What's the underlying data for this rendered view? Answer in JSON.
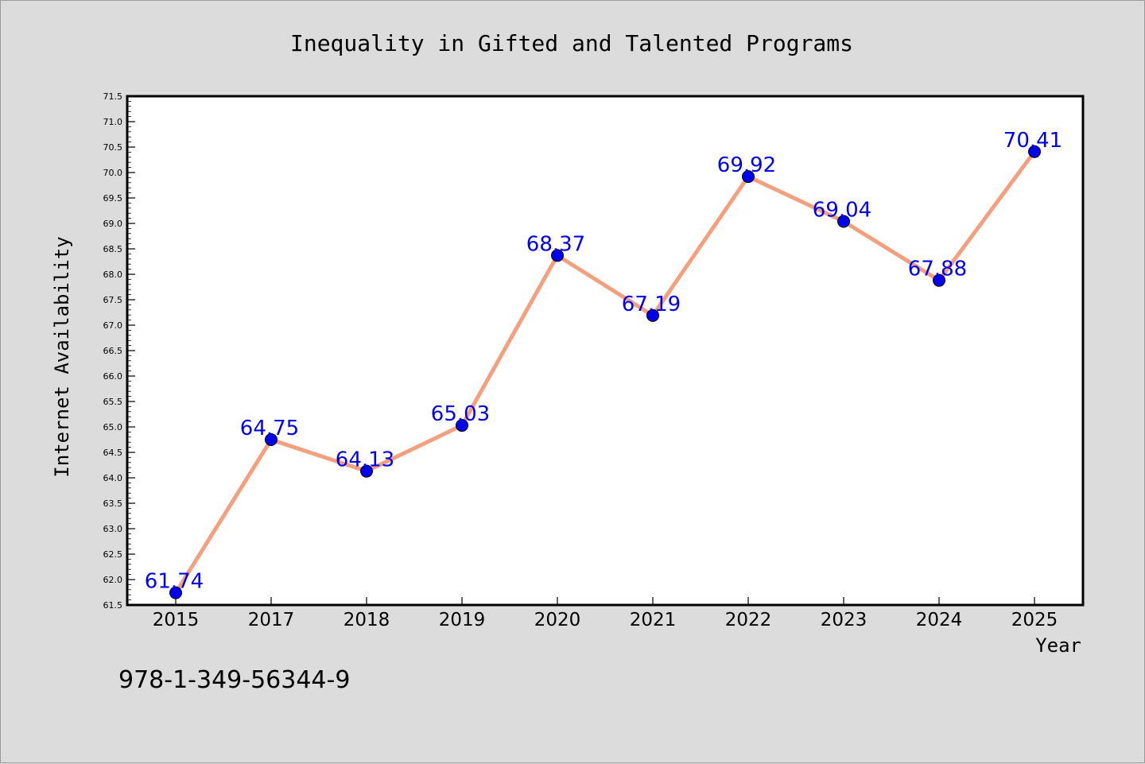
{
  "chart_data": {
    "type": "line",
    "title": "Inequality in Gifted and Talented Programs",
    "xlabel": "Year",
    "ylabel": "Internet Availability",
    "categories": [
      "2015",
      "2017",
      "2018",
      "2019",
      "2020",
      "2021",
      "2022",
      "2023",
      "2024",
      "2025"
    ],
    "series": [
      {
        "values": [
          61.74,
          64.75,
          64.13,
          65.03,
          68.37,
          67.19,
          69.92,
          69.04,
          67.88,
          70.41
        ]
      }
    ],
    "data_labels": [
      "61.74",
      "64.75",
      "64.13",
      "65.03",
      "68.37",
      "67.19",
      "69.92",
      "69.04",
      "67.88",
      "70.41"
    ],
    "ylim": [
      61.5,
      71.5
    ],
    "yticks": [
      "61.5",
      "62.0",
      "62.5",
      "63.0",
      "63.5",
      "64.0",
      "64.5",
      "65.0",
      "65.5",
      "66.0",
      "66.5",
      "67.0",
      "67.5",
      "68.0",
      "68.5",
      "69.0",
      "69.5",
      "70.0",
      "70.5",
      "71.0",
      "71.5"
    ],
    "grid": false,
    "line_color": "#f4a07f",
    "marker_color": "#0000ee",
    "label_color": "#0000ee"
  },
  "footer": {
    "text": "978-1-349-56344-9"
  }
}
